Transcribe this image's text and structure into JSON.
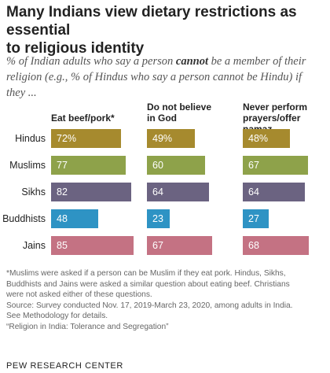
{
  "title_line1": "Many Indians view dietary restrictions as essential",
  "title_line2": "to religious identity",
  "subtitle_before": "% of Indian adults who say a person ",
  "subtitle_emphasis": "cannot",
  "subtitle_after": " be a member of their religion (e.g., % of Hindus who say a person cannot be Hindu) if they ...",
  "chart_data": {
    "type": "bar",
    "categories": [
      "Hindus",
      "Muslims",
      "Sikhs",
      "Buddhists",
      "Jains"
    ],
    "category_colors": [
      "#a68a2e",
      "#8ea24a",
      "#6b6381",
      "#2e93c4",
      "#c47283"
    ],
    "panels": [
      {
        "header_lines": [
          "Eat beef/pork*"
        ],
        "values": [
          72,
          77,
          82,
          48,
          85
        ],
        "labels": [
          "72%",
          "77",
          "82",
          "48",
          "85"
        ]
      },
      {
        "header_lines": [
          "Do not believe",
          "in God"
        ],
        "values": [
          49,
          60,
          64,
          23,
          67
        ],
        "labels": [
          "49%",
          "60",
          "64",
          "23",
          "67"
        ]
      },
      {
        "header_lines": [
          "Never perform",
          "prayers/offer namaz"
        ],
        "values": [
          48,
          67,
          64,
          27,
          68
        ],
        "labels": [
          "48%",
          "67",
          "64",
          "27",
          "68"
        ]
      }
    ],
    "xlim": [
      0,
      100
    ]
  },
  "notes": [
    "*Muslims were asked if a person can be Muslim if they eat pork. Hindus, Sikhs,",
    "Buddhists and Jains were asked a similar question about eating beef. Christians",
    "were not asked either of these questions.",
    "Source: Survey conducted Nov. 17, 2019-March 23, 2020, among adults in India.",
    "See Methodology for details.",
    "“Religion in India: Tolerance and Segregation”"
  ],
  "source_org": "PEW RESEARCH CENTER"
}
